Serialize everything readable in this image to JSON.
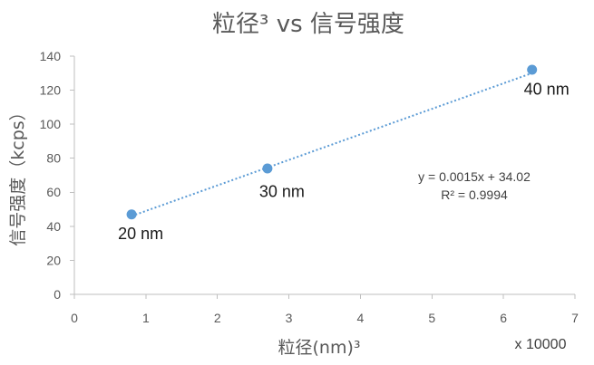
{
  "chart_data": {
    "type": "scatter",
    "title": "粒径³ vs 信号强度",
    "xlabel": "粒径(nm)³",
    "x_display_unit": "x 10000",
    "ylabel": "信号强度（kcps）",
    "xlim": [
      0,
      7
    ],
    "ylim": [
      0,
      140
    ],
    "xticks": [
      0,
      1,
      2,
      3,
      4,
      5,
      6,
      7
    ],
    "yticks": [
      0,
      20,
      40,
      60,
      80,
      100,
      120,
      140
    ],
    "grid": false,
    "series": [
      {
        "color": "#5B9BD5",
        "points": [
          {
            "x": 0.8,
            "y": 47,
            "label": "20 nm"
          },
          {
            "x": 2.7,
            "y": 74,
            "label": "30 nm"
          },
          {
            "x": 6.4,
            "y": 132,
            "label": "40 nm"
          }
        ],
        "trendline": {
          "equation": "y = 0.0015x + 34.02",
          "r_squared": "R² = 0.9994"
        }
      }
    ]
  }
}
